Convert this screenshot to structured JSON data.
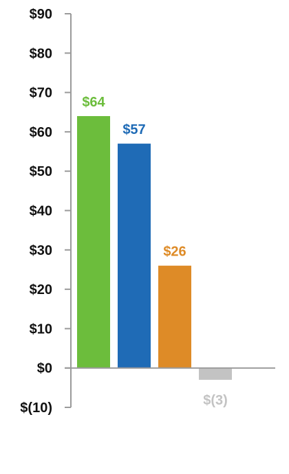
{
  "chart_data": {
    "type": "bar",
    "categories": [
      "",
      "",
      "",
      ""
    ],
    "values": [
      64,
      57,
      26,
      -3
    ],
    "data_labels": [
      "$64",
      "$57",
      "$26",
      "$(3)"
    ],
    "bar_colors": [
      "#6cbd3c",
      "#1f6bb6",
      "#de8b27",
      "#c3c3c3"
    ],
    "label_colors": [
      "#6cbd3c",
      "#1f6bb6",
      "#de8b27",
      "#c3c3c3"
    ],
    "ylim": [
      -10,
      90
    ],
    "yticks": [
      -10,
      0,
      10,
      20,
      30,
      40,
      50,
      60,
      70,
      80,
      90
    ],
    "ytick_labels": [
      "$(10)",
      "$0",
      "$10",
      "$20",
      "$30",
      "$40",
      "$50",
      "$60",
      "$70",
      "$80",
      "$90"
    ],
    "grid": false,
    "title": "",
    "xlabel": "",
    "ylabel": ""
  }
}
